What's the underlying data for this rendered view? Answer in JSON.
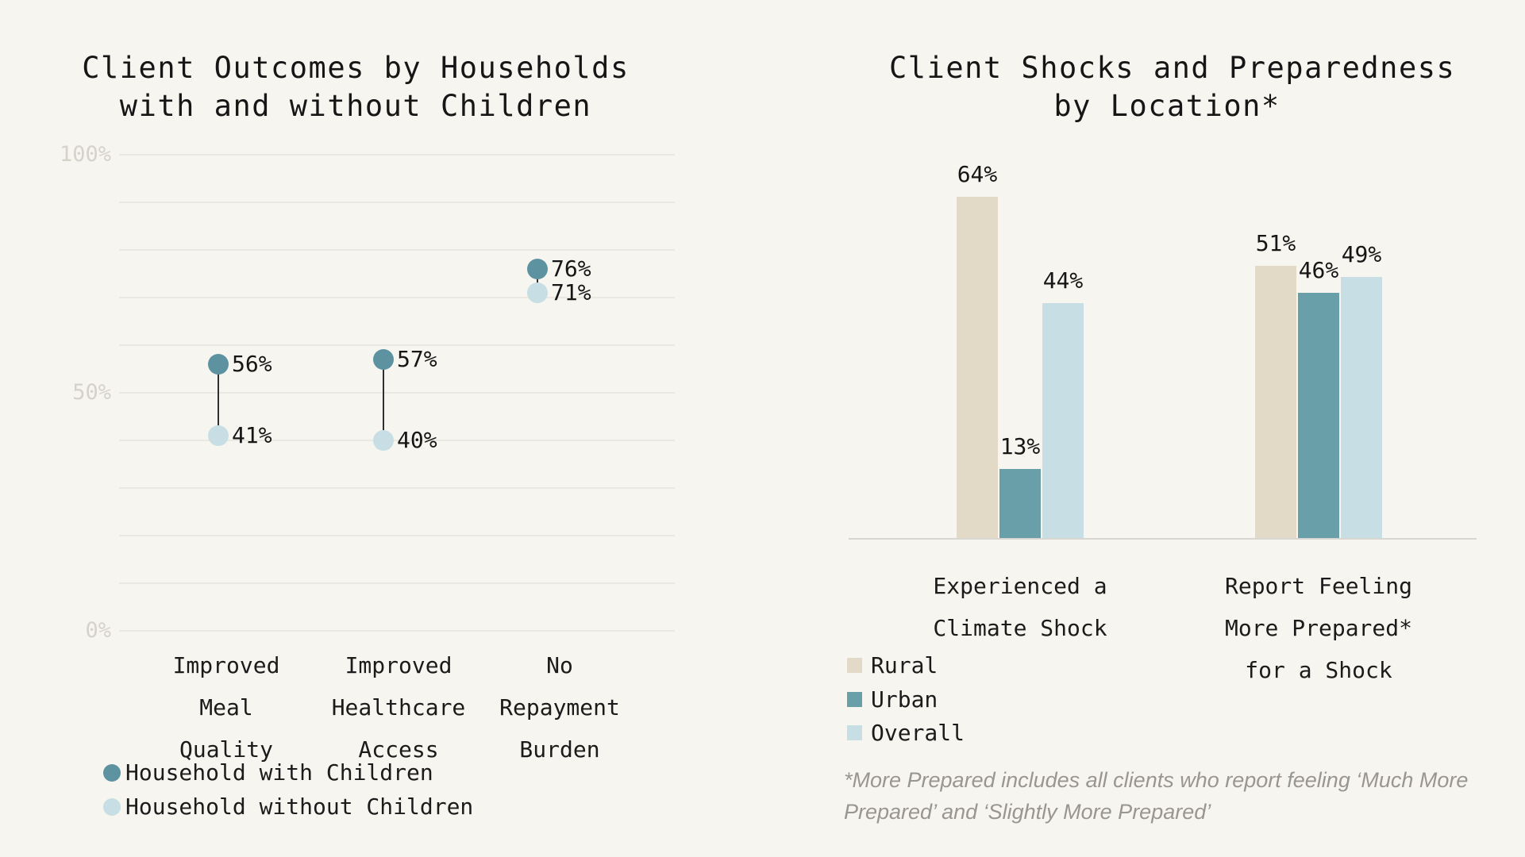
{
  "page": {
    "background": "#f7f5ef"
  },
  "colors": {
    "background": "#f7f5ef",
    "gridline": "#eae8e1",
    "axis_line": "#d8d6d0",
    "tick_label": "#d5d2ca",
    "text": "#1b1b1b",
    "connector": "#2e3033",
    "footnote": "#98968e",
    "with_children": "#5d93a0",
    "without_children": "#c6dee4",
    "rural": "#e3d9c7",
    "urban": "#699fa9",
    "overall": "#c6dee4"
  },
  "chart_data": [
    {
      "id": "outcomes",
      "type": "dumbbell",
      "title_lines": [
        "Client Outcomes by Households",
        "with and without Children"
      ],
      "categories": [
        [
          "Improved",
          "Meal",
          "Quality"
        ],
        [
          "Improved",
          "Healthcare",
          "Access"
        ],
        [
          "No",
          "Repayment",
          "Burden"
        ]
      ],
      "series": [
        {
          "name": "Household with Children",
          "color": "#5d93a0",
          "values": [
            56,
            57,
            76
          ]
        },
        {
          "name": "Household without Children",
          "color": "#c6dee4",
          "values": [
            41,
            40,
            71
          ]
        }
      ],
      "value_suffix": "%",
      "ylim": [
        0,
        100
      ],
      "grid_interval": 10,
      "grid": true,
      "yticks": [
        {
          "label": "100%",
          "value": 100
        },
        {
          "label": "50%",
          "value": 50
        },
        {
          "label": "0%",
          "value": 0
        }
      ],
      "legend_position": "bottom-left"
    },
    {
      "id": "shocks",
      "type": "bar",
      "title_lines": [
        "Client Shocks and Preparedness",
        "by Location*"
      ],
      "categories": [
        [
          "Experienced a",
          "Climate Shock"
        ],
        [
          "Report Feeling",
          "More Prepared*",
          "for a Shock"
        ]
      ],
      "series": [
        {
          "name": "Rural",
          "color": "#e3d9c7",
          "values": [
            64,
            51
          ]
        },
        {
          "name": "Urban",
          "color": "#699fa9",
          "values": [
            13,
            46
          ]
        },
        {
          "name": "Overall",
          "color": "#c6dee4",
          "values": [
            44,
            49
          ]
        }
      ],
      "value_suffix": "%",
      "ylim": [
        0,
        100
      ],
      "grid": false,
      "legend_position": "bottom-left",
      "footnote_lines": [
        "*More Prepared includes all clients who report feeling ‘Much More",
        "Prepared’ and ‘Slightly More Prepared’"
      ]
    }
  ]
}
